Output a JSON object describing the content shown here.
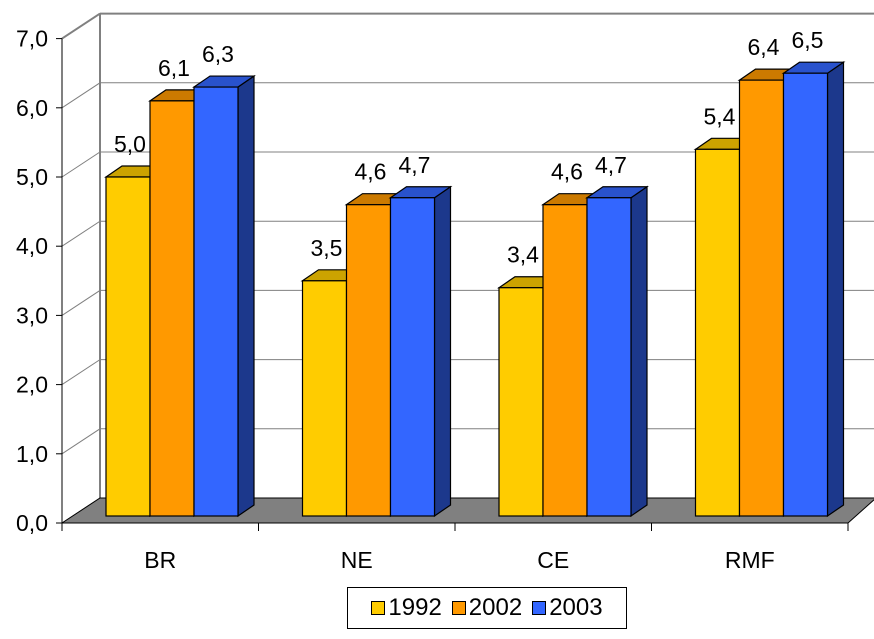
{
  "chart_data": {
    "type": "bar",
    "categories": [
      "BR",
      "NE",
      "CE",
      "RMF"
    ],
    "series": [
      {
        "name": "1992",
        "values": [
          5.0,
          3.5,
          3.4,
          5.4
        ],
        "color": "#FFCC00"
      },
      {
        "name": "2002",
        "values": [
          6.1,
          4.6,
          4.6,
          6.4
        ],
        "color": "#FF9900"
      },
      {
        "name": "2003",
        "values": [
          6.3,
          4.7,
          4.7,
          6.5
        ],
        "color": "#3366FF"
      }
    ],
    "data_labels": [
      [
        "5,0",
        "6,1",
        "6,3"
      ],
      [
        "3,5",
        "4,6",
        "4,7"
      ],
      [
        "3,4",
        "4,6",
        "4,7"
      ],
      [
        "5,4",
        "6,4",
        "6,5"
      ]
    ],
    "y_ticks": [
      "0,0",
      "1,0",
      "2,0",
      "3,0",
      "4,0",
      "5,0",
      "6,0",
      "7,0"
    ],
    "ylim": [
      0,
      7
    ],
    "grid": true,
    "legend_position": "bottom",
    "style": "3d-clustered-column"
  }
}
